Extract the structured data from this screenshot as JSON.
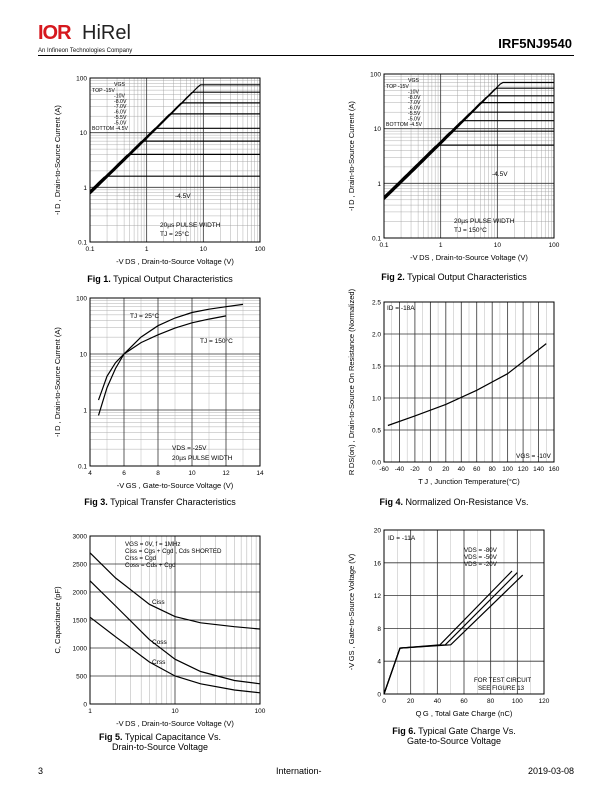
{
  "header": {
    "logo_mark": "IOR",
    "logo_text": "HiRel",
    "logo_sub": "An Infineon Technologies Company",
    "part_number": "IRF5NJ9540"
  },
  "footer": {
    "page": "3",
    "center": "Internation-",
    "date": "2019-03-08"
  },
  "figures": [
    {
      "caption_num": "Fig 1.",
      "caption": "Typical Output Characteristics",
      "caption2": "",
      "chart_data": {
        "type": "line",
        "xscale": "log",
        "yscale": "log",
        "xlim": [
          0.1,
          100
        ],
        "ylim": [
          0.1,
          100
        ],
        "xticks": [
          "0.1",
          "1",
          "10",
          "100"
        ],
        "yticks": [
          "0.1",
          "1",
          "10",
          "100"
        ],
        "xlabel": "-V DS , Drain-to-Source Voltage (V)",
        "ylabel": "-I D , Drain-to-Source Current (A)",
        "legend_title": "VGS",
        "legend": [
          "TOP   -15V",
          "-10V",
          "-8.0V",
          "-7.0V",
          "-6.0V",
          "-5.5V",
          "-5.0V",
          "BOTTOM -4.5V"
        ],
        "annotations": [
          "-4.5V",
          "20µs PULSE WIDTH",
          "TJ = 25°C"
        ],
        "series": [
          {
            "sat": 75
          },
          {
            "sat": 55
          },
          {
            "sat": 35
          },
          {
            "sat": 22
          },
          {
            "sat": 12
          },
          {
            "sat": 7
          },
          {
            "sat": 4
          },
          {
            "sat": 1.6
          }
        ],
        "slope": 7.5,
        "ymin_at": 0.1
      }
    },
    {
      "caption_num": "Fig 2.",
      "caption": "Typical Output Characteristics",
      "caption2": "",
      "chart_data": {
        "type": "line",
        "xscale": "log",
        "yscale": "log",
        "xlim": [
          0.1,
          100
        ],
        "ylim": [
          0.1,
          100
        ],
        "xticks": [
          "0.1",
          "1",
          "10",
          "100"
        ],
        "yticks": [
          "0.1",
          "1",
          "10",
          "100"
        ],
        "xlabel": "-V DS , Drain-to-Source Voltage (V)",
        "ylabel": "-I D , Drain-to-Source Current (A)",
        "legend_title": "VGS",
        "legend": [
          "TOP   -15V",
          "-10V",
          "-8.0V",
          "-7.0V",
          "-6.0V",
          "-5.5V",
          "-5.0V",
          "BOTTOM -4.5V"
        ],
        "annotations": [
          "-4.5V",
          "20µs PULSE WIDTH",
          "TJ = 150°C"
        ],
        "series": [
          {
            "sat": 70
          },
          {
            "sat": 55
          },
          {
            "sat": 40
          },
          {
            "sat": 30
          },
          {
            "sat": 20
          },
          {
            "sat": 14
          },
          {
            "sat": 9
          },
          {
            "sat": 5
          }
        ],
        "slope": 5,
        "ymin_at": 0.1
      }
    },
    {
      "caption_num": "Fig 3.",
      "caption": "Typical Transfer Characteristics",
      "caption2": "",
      "chart_data": {
        "type": "line",
        "xscale": "linear",
        "yscale": "log",
        "xlim": [
          4,
          14
        ],
        "ylim": [
          0.1,
          100
        ],
        "xticks": [
          "4",
          "6",
          "8",
          "10",
          "12",
          "14"
        ],
        "yticks": [
          "0.1",
          "1",
          "10",
          "100"
        ],
        "xlabel": "-V GS , Gate-to-Source Voltage (V)",
        "ylabel": "-I D , Drain-to-Source Current (A)",
        "annotations": [
          "TJ = 25°C",
          "TJ = 150°C",
          "VDS = -25V",
          "20µs PULSE WIDTH"
        ],
        "series": [
          {
            "name": "TJ = 25°C",
            "x": [
              4.5,
              5,
              5.5,
              6,
              7,
              8,
              9,
              10,
              11,
              12,
              13
            ],
            "y": [
              0.8,
              2.5,
              5.5,
              10,
              20,
              32,
              44,
              55,
              63,
              70,
              77
            ]
          },
          {
            "name": "TJ = 150°C",
            "x": [
              4.5,
              5,
              5.5,
              6,
              7,
              8,
              9,
              10,
              11,
              12
            ],
            "y": [
              1.5,
              4,
              7,
              10,
              16,
              22,
              29,
              36,
              42,
              48
            ]
          }
        ]
      }
    },
    {
      "caption_num": "Fig 4.",
      "caption": "Normalized On-Resistance Vs.",
      "caption2": "",
      "chart_data": {
        "type": "line",
        "xscale": "linear",
        "yscale": "linear",
        "xlim": [
          -60,
          160
        ],
        "ylim": [
          0.0,
          2.5
        ],
        "xticks": [
          "-60",
          "-40",
          "-20",
          "0",
          "20",
          "40",
          "60",
          "80",
          "100",
          "120",
          "140",
          "160"
        ],
        "yticks": [
          "0.0",
          "0.5",
          "1.0",
          "1.5",
          "2.0",
          "2.5"
        ],
        "xlabel": "T J , Junction Temperature(°C)",
        "ylabel": "R DS(on) , Drain-to-Source On Resistance (Normalized)",
        "annotations": [
          "ID = -18A",
          "VGS = -10V"
        ],
        "series": [
          {
            "x": [
              -55,
              -20,
              20,
              60,
              100,
              150
            ],
            "y": [
              0.57,
              0.72,
              0.9,
              1.12,
              1.38,
              1.85
            ]
          }
        ]
      }
    },
    {
      "caption_num": "Fig 5.",
      "caption": "Typical Capacitance Vs.",
      "caption2": "Drain-to-Source Voltage",
      "chart_data": {
        "type": "line",
        "xscale": "log",
        "yscale": "linear",
        "xlim": [
          1,
          100
        ],
        "ylim": [
          0,
          3000
        ],
        "xticks": [
          "1",
          "10",
          "100"
        ],
        "yticks": [
          "0",
          "500",
          "1000",
          "1500",
          "2000",
          "2500",
          "3000"
        ],
        "xlabel": "-V DS , Drain-to-Source Voltage (V)",
        "ylabel": "C, Capacitance (pF)",
        "annotations": [
          "VGS = 0V,      f = 1MHz",
          "Ciss = Cgs + Cgd , Cds  SHORTED",
          "Crss = Cgd",
          "Coss = Cds + Cgd",
          "Ciss",
          "Coss",
          "Crss"
        ],
        "series": [
          {
            "name": "Ciss",
            "x": [
              1,
              2,
              5,
              10,
              20,
              50,
              100
            ],
            "y": [
              2700,
              2250,
              1780,
              1560,
              1450,
              1380,
              1340
            ]
          },
          {
            "name": "Coss",
            "x": [
              1,
              2,
              5,
              10,
              20,
              50,
              100
            ],
            "y": [
              2200,
              1750,
              1150,
              800,
              580,
              420,
              360
            ]
          },
          {
            "name": "Crss",
            "x": [
              1,
              2,
              5,
              10,
              20,
              50,
              100
            ],
            "y": [
              1550,
              1200,
              750,
              500,
              360,
              250,
              200
            ]
          }
        ]
      }
    },
    {
      "caption_num": "Fig 6.",
      "caption": "Typical Gate Charge Vs.",
      "caption2": "Gate-to-Source Voltage",
      "chart_data": {
        "type": "line",
        "xscale": "linear",
        "yscale": "linear",
        "xlim": [
          0,
          120
        ],
        "ylim": [
          0,
          20
        ],
        "xticks": [
          "0",
          "20",
          "40",
          "60",
          "80",
          "100",
          "120"
        ],
        "yticks": [
          "0",
          "4",
          "8",
          "12",
          "16",
          "20"
        ],
        "xlabel": "Q G , Total Gate Charge (nC)",
        "ylabel": "-V GS , Gate-to-Source Voltage (V)",
        "annotations": [
          "ID = -11A",
          "VDS = -80V",
          "VDS = -50V",
          "VDS = -20V",
          "FOR TEST CIRCUIT",
          "SEE FIGURE 13"
        ],
        "series": [
          {
            "name": "VDS = -80V",
            "x": [
              0,
              12,
              50,
              104
            ],
            "y": [
              0,
              5.6,
              6,
              14.5
            ]
          },
          {
            "name": "VDS = -50V",
            "x": [
              0,
              12,
              46,
              100
            ],
            "y": [
              0,
              5.6,
              6,
              14.8
            ]
          },
          {
            "name": "VDS = -20V",
            "x": [
              0,
              12,
              42,
              96
            ],
            "y": [
              0,
              5.6,
              6,
              15
            ]
          }
        ]
      }
    }
  ]
}
